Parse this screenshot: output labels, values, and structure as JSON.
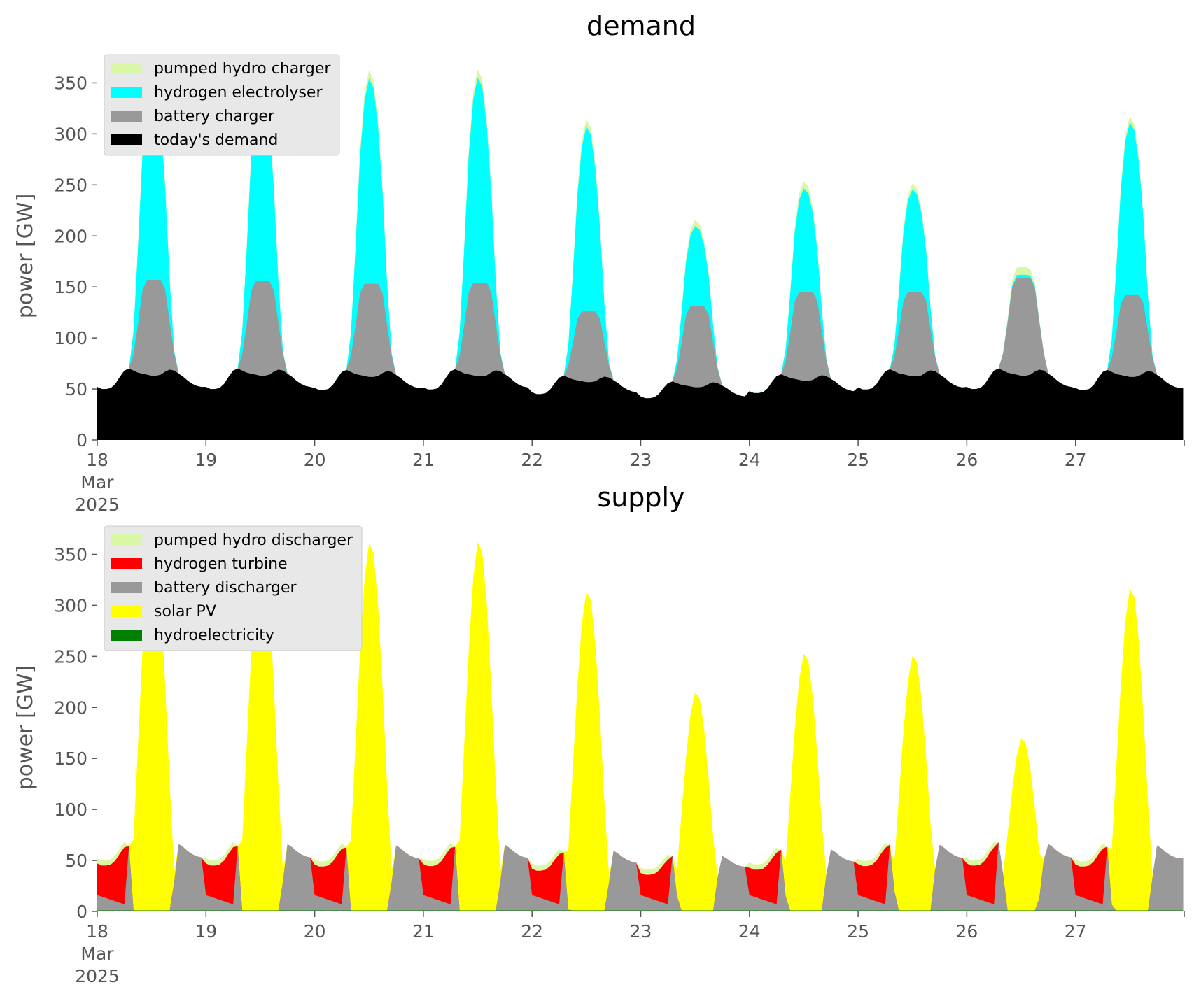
{
  "chart_data": [
    {
      "type": "area",
      "title": "demand",
      "ylabel": "power [GW]",
      "xlabel": "",
      "x_unit": "days of March 2025",
      "xlim": [
        18,
        28
      ],
      "ylim": [
        0,
        375
      ],
      "yticks": [
        0,
        50,
        100,
        150,
        200,
        250,
        300,
        350
      ],
      "xtick_labels": [
        {
          "value": 18,
          "lines": [
            "18",
            "Mar",
            "2025"
          ]
        },
        {
          "value": 19,
          "lines": [
            "19"
          ]
        },
        {
          "value": 20,
          "lines": [
            "20"
          ]
        },
        {
          "value": 21,
          "lines": [
            "21"
          ]
        },
        {
          "value": 22,
          "lines": [
            "22"
          ]
        },
        {
          "value": 23,
          "lines": [
            "23"
          ]
        },
        {
          "value": 24,
          "lines": [
            "24"
          ]
        },
        {
          "value": 25,
          "lines": [
            "25"
          ]
        },
        {
          "value": 26,
          "lines": [
            "26"
          ]
        },
        {
          "value": 27,
          "lines": [
            "27"
          ]
        }
      ],
      "legend_position": "top-left",
      "grid": false,
      "stacked": true,
      "legend": [
        {
          "name": "pumped hydro charger",
          "color": "#d9f7a6"
        },
        {
          "name": "hydrogen electrolyser",
          "color": "#00ffff"
        },
        {
          "name": "battery charger",
          "color": "#999999"
        },
        {
          "name": "today's demand",
          "color": "#000000"
        }
      ],
      "series_profiles": {
        "todays_demand": {
          "color": "#000000",
          "base_daily_profile_GW": [
            52,
            50,
            50,
            51,
            55,
            62,
            68,
            70,
            68,
            66,
            65,
            64,
            63,
            63,
            64,
            67,
            69,
            68,
            65,
            62,
            58,
            55,
            53,
            52
          ],
          "daily_scale": [
            1.0,
            1.0,
            0.98,
            0.99,
            0.9,
            0.82,
            0.92,
            0.99,
            1.0,
            0.98
          ]
        },
        "battery_charger_daily_peak_top_GW": [
          157,
          156,
          153,
          154,
          126,
          131,
          145,
          145,
          159,
          142
        ],
        "hydrogen_electrolyser_daily_peak_top_GW": [
          360,
          357,
          355,
          356,
          308,
          210,
          247,
          246,
          162,
          312
        ],
        "pumped_hydro_charger_daily_peak_top_GW": [
          368,
          365,
          363,
          364,
          315,
          216,
          254,
          252,
          170,
          318
        ]
      }
    },
    {
      "type": "area",
      "title": "supply",
      "ylabel": "power [GW]",
      "xlabel": "",
      "x_unit": "days of March 2025",
      "xlim": [
        18,
        28
      ],
      "ylim": [
        0,
        375
      ],
      "yticks": [
        0,
        50,
        100,
        150,
        200,
        250,
        300,
        350
      ],
      "xtick_labels": [
        {
          "value": 18,
          "lines": [
            "18",
            "Mar",
            "2025"
          ]
        },
        {
          "value": 19,
          "lines": [
            "19"
          ]
        },
        {
          "value": 20,
          "lines": [
            "20"
          ]
        },
        {
          "value": 21,
          "lines": [
            "21"
          ]
        },
        {
          "value": 22,
          "lines": [
            "22"
          ]
        },
        {
          "value": 23,
          "lines": [
            "23"
          ]
        },
        {
          "value": 24,
          "lines": [
            "24"
          ]
        },
        {
          "value": 25,
          "lines": [
            "25"
          ]
        },
        {
          "value": 26,
          "lines": [
            "26"
          ]
        },
        {
          "value": 27,
          "lines": [
            "27"
          ]
        }
      ],
      "legend_position": "top-left",
      "grid": false,
      "stacked": true,
      "legend": [
        {
          "name": "pumped hydro discharger",
          "color": "#d9f7a6"
        },
        {
          "name": "hydrogen turbine",
          "color": "#ff0000"
        },
        {
          "name": "battery discharger",
          "color": "#999999"
        },
        {
          "name": "solar PV",
          "color": "#ffff00"
        },
        {
          "name": "hydroelectricity",
          "color": "#008000"
        }
      ],
      "series_profiles": {
        "solar_pv_daily_peak_GW": [
          368,
          365,
          363,
          364,
          315,
          216,
          254,
          252,
          170,
          318
        ],
        "hydrogen_turbine_night_peak_GW": [
          45,
          45,
          42,
          40,
          38,
          35,
          38,
          40,
          40,
          45
        ],
        "battery_discharger_evening_peak_GW": [
          70,
          68,
          68,
          68,
          58,
          55,
          66,
          67,
          68,
          67
        ],
        "hydroelectricity_GW": 1
      }
    }
  ]
}
